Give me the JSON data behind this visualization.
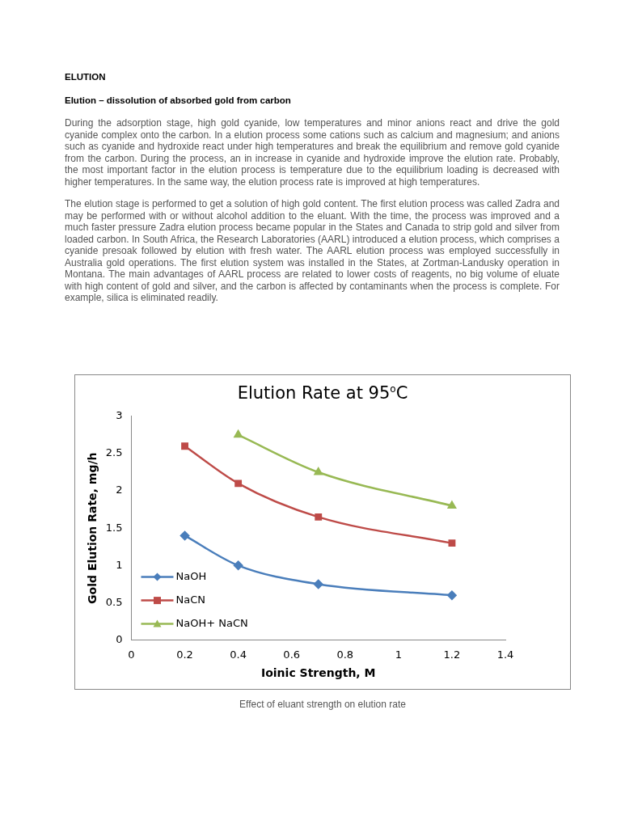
{
  "chart_data": {
    "type": "line",
    "title": "Elution Rate at 95$^{o}$C",
    "xlabel": "Ioinic Strength, M",
    "ylabel": "Gold Elution Rate, mg/h",
    "series": [
      {
        "name": "NaOH",
        "color": "#4a7ebb",
        "marker": "diamond",
        "x": [
          0.2,
          0.4,
          0.7,
          1.2
        ],
        "values": [
          1.4,
          1.0,
          0.75,
          0.6
        ]
      },
      {
        "name": "NaCN",
        "color": "#be4b48",
        "marker": "square",
        "x": [
          0.2,
          0.4,
          0.7,
          1.2
        ],
        "values": [
          2.6,
          2.1,
          1.65,
          1.3
        ]
      },
      {
        "name": "NaOH+ NaCN",
        "color": "#98b954",
        "marker": "triangle",
        "x": [
          0.4,
          0.7,
          1.2
        ],
        "values": [
          2.75,
          2.25,
          1.8
        ]
      }
    ],
    "xlim": [
      0,
      1.4
    ],
    "xticks": [
      0,
      0.2,
      0.4,
      0.6,
      0.8,
      1,
      1.2,
      1.4
    ],
    "ylim": [
      0,
      3
    ],
    "yticks": [
      0,
      0.5,
      1,
      1.5,
      2,
      2.5,
      3
    ],
    "grid": false,
    "legend": "bottom left",
    "annotations": [
      "ELUTION",
      "Elution – dissolution of absorbed gold from carbon",
      "During the adsorption stage, high gold cyanide, low temperatures and minor anions react and drive the gold cyanide complex onto the carbon. In a elution process some cations such as calcium and magnesium; and anions such as cyanide and hydroxide react under high temperatures and break the equilibrium and remove gold cyanide from the carbon. During the process, an in increase in cyanide and hydroxide improve the elution rate. Probably, the most important factor in the elution process is temperature due to the equilibrium loading is decreased with higher temperatures. In the same way, the elution process rate is improved at high temperatures.",
      "The elution stage is performed to get a solution of high gold content. The first elution process was called Zadra and may be performed with or without alcohol addition to the eluant. With the time, the process was improved and a much faster pressure Zadra elution process became popular in the States and Canada to strip gold and silver from loaded carbon. In South Africa, the Research Laboratories (AARL) introduced a elution process, which comprises a cyanide presoak followed by elution with fresh water. The AARL elution process was employed successfully in Australia gold operations. The first elution system was installed in the States, at Zortman-Landusky operation in Montana. The main advantages of AARL process are related to lower costs of reagents, no big volume of eluate with high content of gold and silver, and the carbon is affected by contaminants when the process is complete. For example, silica is eliminated readily.",
      "Effect of eluant strength on elution rate"
    ]
  }
}
